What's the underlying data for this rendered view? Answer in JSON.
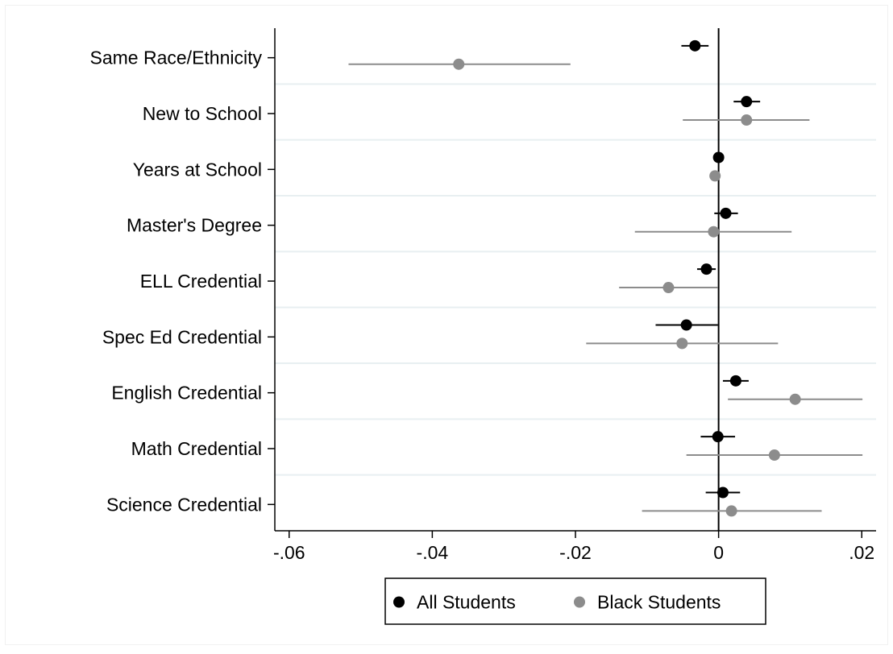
{
  "chart_data": {
    "type": "scatter",
    "subtype": "coefficient-plot-with-confidence-intervals",
    "title": "",
    "xlabel": "",
    "ylabel": "",
    "xlim": [
      -0.062,
      0.022
    ],
    "x_ticks": [
      -0.06,
      -0.04,
      -0.02,
      0,
      0.02
    ],
    "x_tick_labels": [
      "-.06",
      "-.04",
      "-.02",
      "0",
      ".02"
    ],
    "reference_line_x": 0,
    "grid": "horizontal-bands",
    "legend_position": "bottom",
    "categories": [
      "Same Race/Ethnicity",
      "New to School",
      "Years at School",
      "Master's Degree",
      "ELL Credential",
      "Spec Ed Credential",
      "English Credential",
      "Math Credential",
      "Science Credential"
    ],
    "series": [
      {
        "name": "All Students",
        "color": "#000000",
        "estimates": [
          -0.0033,
          0.0039,
          0.0,
          0.001,
          -0.0017,
          -0.0045,
          0.0024,
          -0.0001,
          0.0006
        ],
        "ci_low": [
          -0.0052,
          0.0021,
          -0.0006,
          -0.0006,
          -0.003,
          -0.0088,
          0.0006,
          -0.0025,
          -0.0018
        ],
        "ci_high": [
          -0.0014,
          0.0058,
          0.0006,
          0.0027,
          -0.0004,
          -0.0001,
          0.0042,
          0.0023,
          0.003
        ]
      },
      {
        "name": "Black Students",
        "color": "#8c8c8c",
        "estimates": [
          -0.0363,
          0.0039,
          -0.0005,
          -0.0007,
          -0.007,
          -0.0051,
          0.0107,
          0.0078,
          0.0018
        ],
        "ci_low": [
          -0.0517,
          -0.005,
          -0.0005,
          -0.0117,
          -0.0139,
          -0.0185,
          0.0013,
          -0.0045,
          -0.0107
        ],
        "ci_high": [
          -0.0207,
          0.0127,
          -0.0005,
          0.0102,
          -0.0001,
          0.0083,
          0.0201,
          0.0201,
          0.0144
        ]
      }
    ]
  }
}
